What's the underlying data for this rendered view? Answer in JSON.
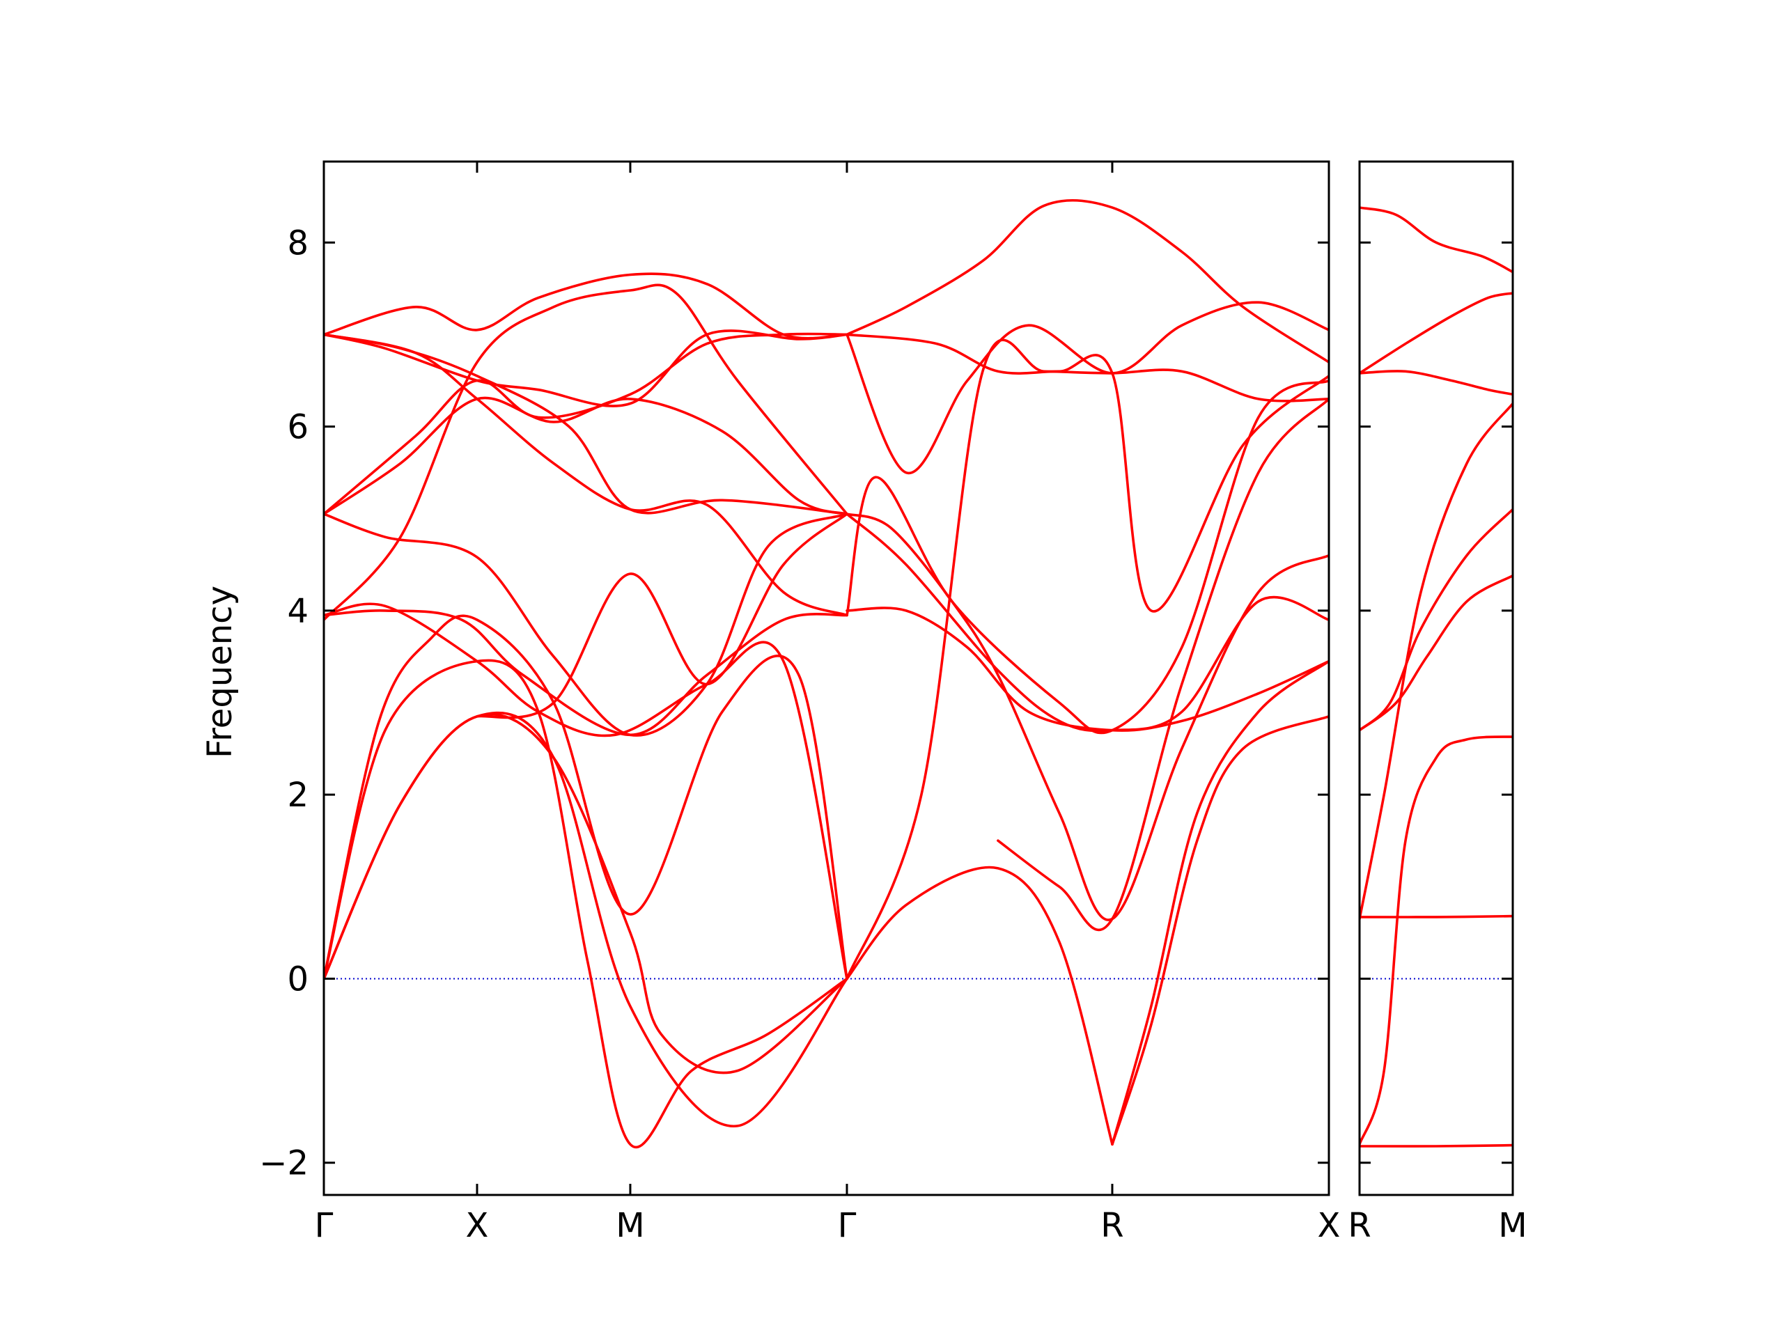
{
  "chart_data": {
    "type": "line",
    "ylabel": "Frequency",
    "ylim": [
      -2.35,
      8.88
    ],
    "yticks": [
      -2,
      0,
      2,
      4,
      6,
      8
    ],
    "ytick_labels": [
      "−2",
      "0",
      "2",
      "4",
      "6",
      "8"
    ],
    "grid": false,
    "line_color": "#ff0000",
    "zero_line_color": "#0000cc",
    "panels": [
      {
        "labels": [
          "Γ",
          "X",
          "M",
          "Γ",
          "R",
          "X"
        ],
        "label_pos": [
          0,
          0.5,
          1.0,
          1.707,
          2.573,
          3.28
        ],
        "series": [
          {
            "x": [
              0,
              0.25,
              0.5,
              0.75,
              1.0,
              1.1,
              1.35,
              1.707
            ],
            "values": [
              0,
              1.9,
              2.85,
              2.4,
              0.5,
              -0.6,
              -1.0,
              0
            ]
          },
          {
            "x": [
              0,
              0.25,
              0.5,
              0.75,
              1.0,
              1.35,
              1.707
            ],
            "values": [
              0,
              1.9,
              2.85,
              2.4,
              -0.3,
              -1.6,
              0
            ]
          },
          {
            "x": [
              0,
              0.2,
              0.5,
              0.7,
              0.86,
              1.0,
              1.2,
              1.45,
              1.707
            ],
            "values": [
              0,
              2.7,
              3.45,
              2.9,
              0.2,
              -1.8,
              -1.0,
              -0.6,
              0
            ]
          },
          {
            "x": [
              1.707,
              1.9,
              2.2,
              2.4,
              2.573
            ],
            "values": [
              0,
              0.8,
              1.2,
              0.4,
              -1.8
            ]
          },
          {
            "x": [
              2.573,
              2.7,
              2.85,
              3.0,
              3.28
            ],
            "values": [
              -1.8,
              -0.5,
              1.5,
              2.5,
              2.85
            ]
          },
          {
            "x": [
              2.573,
              2.7,
              2.85,
              3.05,
              3.28
            ],
            "values": [
              -1.8,
              -0.3,
              1.8,
              2.9,
              3.45
            ]
          },
          {
            "x": [
              0,
              0.18,
              0.35,
              0.5,
              0.75,
              1.0,
              1.3,
              1.55,
              1.707
            ],
            "values": [
              0,
              2.8,
              3.7,
              3.9,
              3.0,
              0.7,
              2.9,
              3.3,
              0
            ]
          },
          {
            "x": [
              0,
              0.2,
              0.5,
              0.7,
              0.95,
              1.25,
              1.5,
              1.707
            ],
            "values": [
              3.95,
              4.05,
              3.45,
              2.9,
              2.65,
              3.2,
              3.45,
              0
            ]
          },
          {
            "x": [
              0,
              0.2,
              0.45,
              0.65,
              1.0,
              1.25,
              1.5,
              1.707
            ],
            "values": [
              3.95,
              4.0,
              3.9,
              3.3,
              2.65,
              3.3,
              3.9,
              3.95
            ]
          },
          {
            "x": [
              0,
              0.2,
              0.5,
              0.75,
              1.0,
              1.25,
              1.45,
              1.707
            ],
            "values": [
              5.05,
              4.8,
              4.58,
              3.5,
              2.65,
              3.2,
              4.7,
              5.05
            ]
          },
          {
            "x": [
              0,
              0.25,
              0.5,
              0.75,
              1.0,
              1.15,
              1.35,
              1.707
            ],
            "values": [
              3.9,
              4.8,
              6.7,
              7.3,
              7.48,
              7.45,
              6.5,
              5.05
            ]
          },
          {
            "x": [
              0,
              0.2,
              0.5,
              0.7,
              1.0,
              1.25,
              1.55,
              1.707
            ],
            "values": [
              7.0,
              6.85,
              6.5,
              6.4,
              6.25,
              7.0,
              6.95,
              7.0
            ]
          },
          {
            "x": [
              0,
              0.3,
              0.5,
              0.7,
              1.0,
              1.25,
              1.5,
              1.707
            ],
            "values": [
              7.0,
              7.3,
              7.05,
              7.4,
              7.65,
              7.55,
              7.0,
              7.0
            ]
          },
          {
            "x": [
              0,
              0.25,
              0.5,
              0.75,
              1.0,
              1.3,
              1.55,
              1.707
            ],
            "values": [
              5.05,
              5.6,
              6.3,
              6.05,
              6.3,
              5.95,
              5.2,
              5.05
            ]
          },
          {
            "x": [
              0,
              0.3,
              0.5,
              0.7,
              1.0,
              1.25,
              1.5,
              1.707
            ],
            "values": [
              5.05,
              5.9,
              6.5,
              6.1,
              6.35,
              6.9,
              7.0,
              7.0
            ]
          },
          {
            "x": [
              0,
              0.25,
              0.5,
              0.8,
              1.0,
              1.3,
              1.707
            ],
            "values": [
              7.0,
              6.85,
              6.55,
              6.0,
              5.1,
              5.2,
              5.05
            ]
          },
          {
            "x": [
              0,
              0.3,
              0.5,
              0.75,
              1.0,
              1.25,
              1.5,
              1.707
            ],
            "values": [
              7.0,
              6.8,
              6.3,
              5.6,
              5.1,
              5.15,
              4.2,
              3.95
            ]
          },
          {
            "x": [
              0.5,
              0.75,
              1.0,
              1.25,
              1.5,
              1.707
            ],
            "values": [
              2.85,
              3.0,
              4.4,
              3.2,
              4.5,
              5.05
            ]
          },
          {
            "x": [
              1.707,
              1.9,
              2.15,
              2.35,
              2.573,
              2.8,
              3.0,
              3.28
            ],
            "values": [
              7.0,
              7.3,
              7.8,
              8.4,
              8.38,
              7.9,
              7.3,
              6.7
            ]
          },
          {
            "x": [
              1.707,
              1.9,
              2.1,
              2.3,
              2.573,
              2.8,
              3.05,
              3.28
            ],
            "values": [
              7.0,
              5.5,
              6.5,
              7.1,
              6.58,
              7.1,
              7.35,
              7.05
            ]
          },
          {
            "x": [
              1.707,
              1.9,
              2.1,
              2.3,
              2.573,
              2.8,
              3.05,
              3.28
            ],
            "values": [
              4.0,
              4.0,
              3.6,
              2.9,
              2.7,
              2.8,
              3.1,
              3.45
            ]
          },
          {
            "x": [
              1.707,
              1.9,
              2.2,
              2.4,
              2.573,
              2.8,
              3.05,
              3.28
            ],
            "values": [
              5.05,
              4.5,
              3.35,
              2.8,
              2.7,
              2.9,
              4.1,
              3.9
            ]
          },
          {
            "x": [
              1.707,
              1.8,
              2.05,
              2.4,
              2.573,
              2.8,
              3.05,
              3.28
            ],
            "values": [
              3.95,
              5.45,
              4.1,
              3.0,
              2.7,
              3.6,
              6.1,
              6.5
            ]
          },
          {
            "x": [
              1.707,
              1.85,
              2.05,
              2.2,
              2.4,
              2.573,
              2.8,
              3.05,
              3.28
            ],
            "values": [
              5.05,
              4.9,
              4.1,
              3.3,
              1.8,
              0.65,
              2.5,
              4.2,
              4.6
            ]
          },
          {
            "x": [
              1.707,
              1.95,
              2.15,
              2.35,
              2.573,
              2.8,
              3.05,
              3.28
            ],
            "values": [
              0,
              2.0,
              6.6,
              6.6,
              6.58,
              6.6,
              6.3,
              6.3
            ]
          },
          {
            "x": [
              1.707,
              2.0,
              2.2,
              2.4,
              2.573,
              2.7,
              3.0,
              3.28
            ],
            "values": [
              7.0,
              6.9,
              6.6,
              6.6,
              6.58,
              4.0,
              5.8,
              6.55
            ]
          },
          {
            "x": [
              2.2,
              2.4,
              2.573,
              2.8,
              3.05,
              3.28
            ],
            "values": [
              1.5,
              1.0,
              0.65,
              3.2,
              5.5,
              6.3
            ]
          }
        ]
      },
      {
        "labels": [
          "R",
          "M"
        ],
        "label_pos": [
          0,
          0.5
        ],
        "series": [
          {
            "x": [
              0,
              0.12,
              0.25,
              0.4,
              0.5
            ],
            "values": [
              8.38,
              8.3,
              8.0,
              7.85,
              7.68
            ]
          },
          {
            "x": [
              0,
              0.15,
              0.3,
              0.42,
              0.5
            ],
            "values": [
              6.58,
              6.9,
              7.2,
              7.4,
              7.45
            ]
          },
          {
            "x": [
              0,
              0.15,
              0.3,
              0.42,
              0.5
            ],
            "values": [
              6.58,
              6.6,
              6.5,
              6.4,
              6.35
            ]
          },
          {
            "x": [
              0,
              0.08,
              0.2,
              0.35,
              0.5
            ],
            "values": [
              0.65,
              2.0,
              4.2,
              5.6,
              6.25
            ]
          },
          {
            "x": [
              0,
              0.1,
              0.2,
              0.35,
              0.5
            ],
            "values": [
              2.7,
              3.0,
              3.8,
              4.6,
              5.1
            ]
          },
          {
            "x": [
              0,
              0.12,
              0.22,
              0.35,
              0.5
            ],
            "values": [
              2.7,
              3.0,
              3.5,
              4.1,
              4.38
            ]
          },
          {
            "x": [
              0,
              0.08,
              0.15,
              0.25,
              0.35,
              0.5
            ],
            "values": [
              -1.8,
              -1.0,
              1.5,
              2.4,
              2.6,
              2.63
            ]
          },
          {
            "x": [
              0,
              0.25,
              0.5
            ],
            "values": [
              0.67,
              0.67,
              0.68
            ]
          },
          {
            "x": [
              0,
              0.25,
              0.5
            ],
            "values": [
              -1.82,
              -1.82,
              -1.81
            ]
          }
        ]
      }
    ]
  }
}
